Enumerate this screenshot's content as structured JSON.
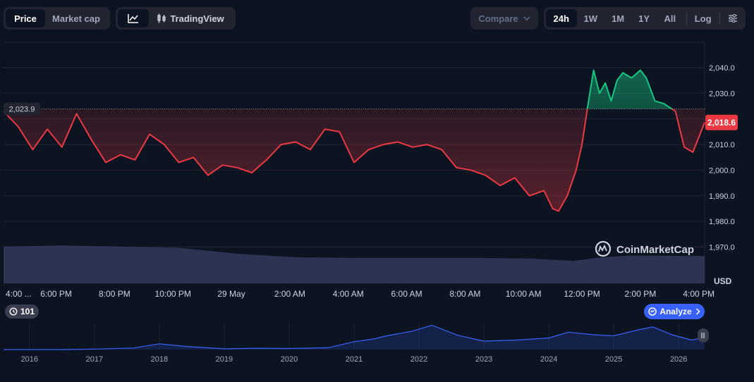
{
  "toolbar": {
    "tabs": [
      "Price",
      "Market cap"
    ],
    "tradingview_label": "TradingView",
    "compare_label": "Compare",
    "ranges": [
      "24h",
      "1W",
      "1M",
      "1Y",
      "All"
    ],
    "log_label": "Log",
    "active_tab": "Price",
    "active_range": "24h"
  },
  "watermark": "CoinMarketCap",
  "currency_label": "USD",
  "badge_count": "101",
  "analyze_label": "Analyze",
  "colors": {
    "up": "#16c784",
    "down": "#ea3943",
    "background": "#0d1421",
    "volume": "#323a5b",
    "mini_line": "#3861fb"
  },
  "chart_data": [
    {
      "type": "line",
      "title": "",
      "reference_line": {
        "value": 2023.9,
        "label": "2,023.9",
        "style": "dotted"
      },
      "current_price": {
        "value": 2018.6,
        "label": "2,018.6"
      },
      "y_ticks": [
        1970,
        1980,
        1990,
        2000,
        2010,
        2020,
        2030,
        2040
      ],
      "y_tick_labels": [
        "1,970.0",
        "1,980.0",
        "1,990.0",
        "2,000.0",
        "2,010.0",
        "2,020.0",
        "2,030.0",
        "2,040.0"
      ],
      "ylim": [
        1965,
        2050
      ],
      "x_tick_labels": [
        "4:00 ...",
        "6:00 PM",
        "8:00 PM",
        "10:00 PM",
        "29 May",
        "2:00 AM",
        "4:00 AM",
        "6:00 AM",
        "8:00 AM",
        "10:00 AM",
        "12:00 PM",
        "2:00 PM",
        "4:00 PM"
      ],
      "x_tick_hours": [
        0,
        1.8,
        3.8,
        5.8,
        7.8,
        9.8,
        11.8,
        13.8,
        15.8,
        17.8,
        19.8,
        21.8,
        23.8
      ],
      "xlim_hours": [
        0,
        24.0
      ],
      "series": [
        {
          "x_hours": [
            0,
            0.5,
            1.0,
            1.5,
            2.0,
            2.5,
            3.0,
            3.5,
            4.0,
            4.5,
            5.0,
            5.5,
            6.0,
            6.5,
            7.0,
            7.5,
            8.0,
            8.5,
            9.0,
            9.5,
            10.0,
            10.5,
            11.0,
            11.5,
            12.0,
            12.5,
            13.0,
            13.5,
            14.0,
            14.5,
            15.0,
            15.5,
            16.0,
            16.5,
            17.0,
            17.5,
            18.0,
            18.5,
            18.8,
            19.0,
            19.3,
            19.6,
            19.8,
            20.0,
            20.2,
            20.4,
            20.6,
            20.8,
            21.0,
            21.2,
            21.5,
            21.8,
            22.0,
            22.3,
            22.6,
            23.0,
            23.3,
            23.6,
            24.0
          ],
          "values": [
            2023.0,
            2017.0,
            2008.0,
            2016.0,
            2009.0,
            2022.0,
            2012.0,
            2003.0,
            2006.0,
            2004.0,
            2014.0,
            2010.0,
            2003.0,
            2005.0,
            1998.0,
            2002.0,
            2001.0,
            1999.0,
            2004.0,
            2010.0,
            2011.0,
            2008.0,
            2016.0,
            2015.0,
            2003.0,
            2008.0,
            2010.0,
            2011.0,
            2009.0,
            2010.0,
            2008.0,
            2001.0,
            2000.0,
            1998.0,
            1994.0,
            1997.0,
            1990.0,
            1992.0,
            1985.0,
            1984.0,
            1990.0,
            2000.0,
            2010.0,
            2025.0,
            2039.0,
            2030.0,
            2034.0,
            2027.0,
            2035.0,
            2038.0,
            2036.0,
            2039.0,
            2036.0,
            2027.0,
            2026.0,
            2023.0,
            2009.0,
            2007.0,
            2018.6
          ]
        }
      ],
      "volume": {
        "x_hours": [
          0,
          2,
          4,
          6,
          8,
          10,
          12,
          14,
          16,
          18,
          19.5,
          20.5,
          21.5,
          24.0
        ],
        "values": [
          0.62,
          0.64,
          0.62,
          0.6,
          0.5,
          0.44,
          0.43,
          0.43,
          0.43,
          0.42,
          0.38,
          0.44,
          0.47,
          0.46
        ]
      }
    },
    {
      "type": "area",
      "x_tick_labels": [
        "2016",
        "2017",
        "2018",
        "2019",
        "2020",
        "2021",
        "2022",
        "2023",
        "2024",
        "2025",
        "2026"
      ],
      "x_years": [
        2015.6,
        2016.5,
        2017.0,
        2017.6,
        2018.0,
        2018.4,
        2019.0,
        2019.5,
        2020.0,
        2020.6,
        2021.0,
        2021.3,
        2021.5,
        2021.9,
        2022.2,
        2022.6,
        2023.0,
        2023.5,
        2024.0,
        2024.3,
        2024.7,
        2025.0,
        2025.4,
        2025.6,
        2025.9,
        2026.2,
        2026.4
      ],
      "values": [
        1,
        5,
        100,
        300,
        1100,
        600,
        150,
        250,
        200,
        350,
        1500,
        2000,
        2600,
        3500,
        4600,
        2700,
        1600,
        1800,
        2200,
        3300,
        2800,
        2600,
        3800,
        4300,
        2800,
        1800,
        2300
      ]
    }
  ]
}
